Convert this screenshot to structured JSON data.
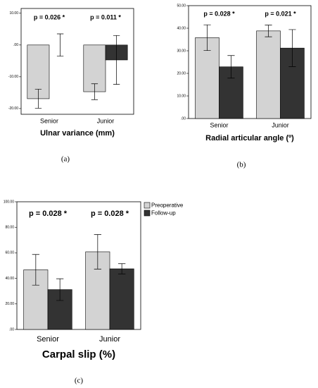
{
  "chart_data": [
    {
      "type": "bar",
      "panel_label": "(a)",
      "x_label": "Ulnar variance (mm)",
      "categories": [
        "Senior",
        "Junior"
      ],
      "annotations": [
        "p = 0.026 *",
        "p = 0.011 *"
      ],
      "series": [
        {
          "color": "#d3d3d3",
          "values": [
            -16.9,
            -14.7
          ],
          "errors": [
            3.0,
            2.5
          ]
        },
        {
          "color": "#333333",
          "values": [
            0,
            -4.7
          ],
          "errors": [
            3.5,
            7.7
          ]
        }
      ],
      "ylim": [
        -21.8,
        11.5
      ],
      "yticks": [
        {
          "value": -20,
          "label": "-20.00"
        },
        {
          "value": -10,
          "label": "-10.00"
        },
        {
          "value": 0,
          "label": ".00"
        },
        {
          "value": 10,
          "label": "10.00"
        }
      ]
    },
    {
      "type": "bar",
      "panel_label": "(b)",
      "x_label": "Radial articular angle (º)",
      "categories": [
        "Senior",
        "Junior"
      ],
      "annotations": [
        "p = 0.028 *",
        "p = 0.021 *"
      ],
      "series": [
        {
          "color": "#d3d3d3",
          "values": [
            35.8,
            38.8
          ],
          "errors": [
            5.7,
            2.6
          ]
        },
        {
          "color": "#333333",
          "values": [
            22.9,
            31.2
          ],
          "errors": [
            5.0,
            8.2
          ]
        }
      ],
      "ylim": [
        0,
        50
      ],
      "yticks": [
        {
          "value": 0,
          "label": ".00"
        },
        {
          "value": 10,
          "label": "10.00"
        },
        {
          "value": 20,
          "label": "20.00"
        },
        {
          "value": 30,
          "label": "30.00"
        },
        {
          "value": 40,
          "label": "40.00"
        },
        {
          "value": 50,
          "label": "50.00"
        }
      ]
    },
    {
      "type": "bar",
      "panel_label": "(c)",
      "x_label": "Carpal slip (%)",
      "categories": [
        "Senior",
        "Junior"
      ],
      "annotations": [
        "p = 0.028 *",
        "p = 0.028 *"
      ],
      "legend": true,
      "series": [
        {
          "name": "Preoperative",
          "color": "#d3d3d3",
          "values": [
            46.7,
            60.8
          ],
          "errors": [
            12.0,
            13.5
          ]
        },
        {
          "name": "Follow-up",
          "color": "#333333",
          "values": [
            31.2,
            47.5
          ],
          "errors": [
            8.5,
            4.0
          ]
        }
      ],
      "ylim": [
        0,
        100
      ],
      "yticks": [
        {
          "value": 0,
          "label": ".00"
        },
        {
          "value": 20,
          "label": "20.00"
        },
        {
          "value": 40,
          "label": "40.00"
        },
        {
          "value": 60,
          "label": "60.00"
        },
        {
          "value": 80,
          "label": "80.00"
        },
        {
          "value": 100,
          "label": "100.00"
        }
      ]
    }
  ]
}
